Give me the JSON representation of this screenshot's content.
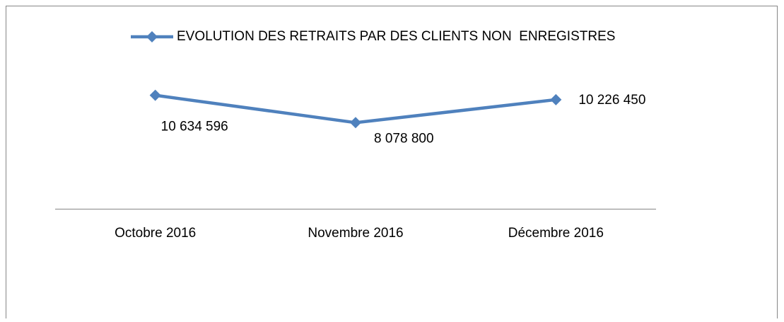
{
  "chart_data": {
    "type": "line",
    "categories": [
      "Octobre 2016",
      "Novembre 2016",
      "Décembre 2016"
    ],
    "series": [
      {
        "name": "EVOLUTION DES RETRAITS PAR DES CLIENTS NON  ENREGISTRES",
        "color": "#4f81bd",
        "values": [
          10634596,
          8078800,
          10226450
        ],
        "value_labels": [
          "10 634 596",
          "8 078 800",
          "10 226 450"
        ]
      }
    ],
    "ylim": [
      0,
      12000000
    ]
  }
}
